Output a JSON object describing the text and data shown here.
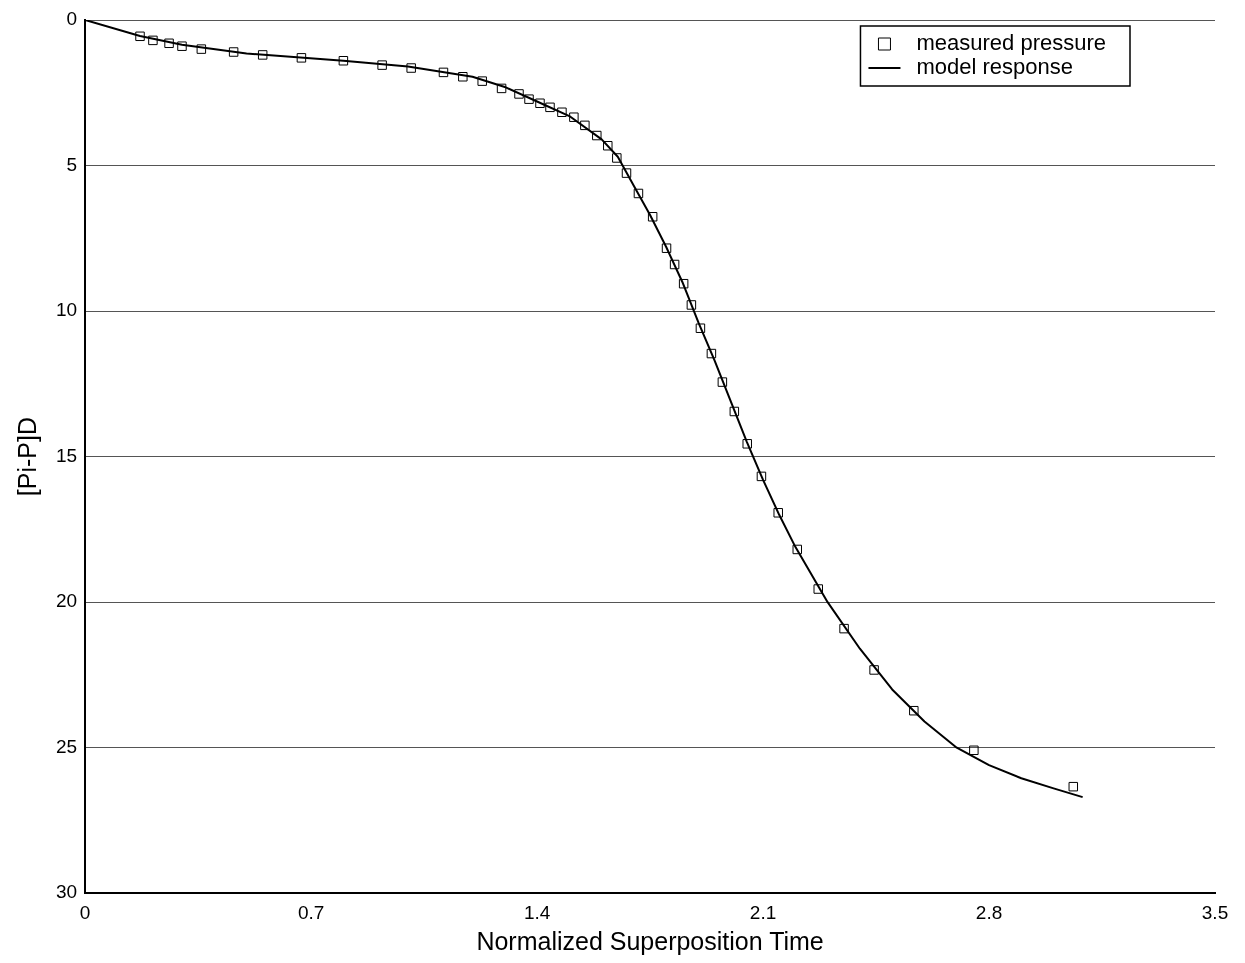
{
  "chart_data": {
    "type": "scatter",
    "xlabel": "Normalized Superposition Time",
    "ylabel": "[Pi-P]D",
    "xlim": [
      0,
      3.5
    ],
    "xticks": [
      0,
      0.7,
      1.4,
      2.1,
      2.8,
      3.5
    ],
    "ylim": [
      30,
      0
    ],
    "yticks": [
      0,
      5,
      10,
      15,
      20,
      25,
      30
    ],
    "grid": "y",
    "legend": "top right",
    "marker": "square",
    "series": [
      {
        "name": "measured pressure",
        "color": "#000000",
        "x": [
          0.17,
          0.21,
          0.26,
          0.3,
          0.36,
          0.46,
          0.55,
          0.67,
          0.8,
          0.92,
          1.01,
          1.11,
          1.17,
          1.23,
          1.29,
          1.344,
          1.375,
          1.409,
          1.44,
          1.477,
          1.514,
          1.548,
          1.585,
          1.619,
          1.647,
          1.677,
          1.714,
          1.758,
          1.801,
          1.826,
          1.854,
          1.878,
          1.906,
          1.94,
          1.974,
          2.011,
          2.051,
          2.095,
          2.147,
          2.206,
          2.271,
          2.351,
          2.444,
          2.567,
          2.753,
          3.061
        ],
        "values": [
          0.56,
          0.7,
          0.8,
          0.9,
          1.0,
          1.1,
          1.2,
          1.3,
          1.4,
          1.55,
          1.65,
          1.8,
          1.95,
          2.1,
          2.35,
          2.54,
          2.72,
          2.86,
          3.0,
          3.17,
          3.34,
          3.62,
          3.97,
          4.32,
          4.74,
          5.26,
          5.96,
          6.76,
          7.84,
          8.4,
          9.06,
          9.79,
          10.59,
          11.46,
          12.44,
          13.45,
          14.56,
          15.68,
          16.93,
          18.19,
          19.55,
          20.91,
          22.33,
          23.73,
          25.09,
          26.34
        ]
      },
      {
        "name": "model response",
        "type": "line",
        "marker": "none",
        "color": "#000000",
        "x": [
          0,
          0.17,
          0.3,
          0.5,
          0.8,
          1.0,
          1.2,
          1.3,
          1.4,
          1.5,
          1.6,
          1.65,
          1.7,
          1.75,
          1.8,
          1.85,
          1.9,
          1.95,
          2.0,
          2.05,
          2.1,
          2.15,
          2.2,
          2.3,
          2.4,
          2.5,
          2.6,
          2.7,
          2.8,
          2.9,
          3.0,
          3.09
        ],
        "values": [
          0,
          0.55,
          0.85,
          1.15,
          1.4,
          1.6,
          1.95,
          2.3,
          2.8,
          3.3,
          4.1,
          4.7,
          5.7,
          6.7,
          7.8,
          9.0,
          10.4,
          11.7,
          13.1,
          14.5,
          15.8,
          17.0,
          18.1,
          20.0,
          21.6,
          23.0,
          24.1,
          25.0,
          25.6,
          26.05,
          26.4,
          26.7
        ]
      }
    ]
  }
}
